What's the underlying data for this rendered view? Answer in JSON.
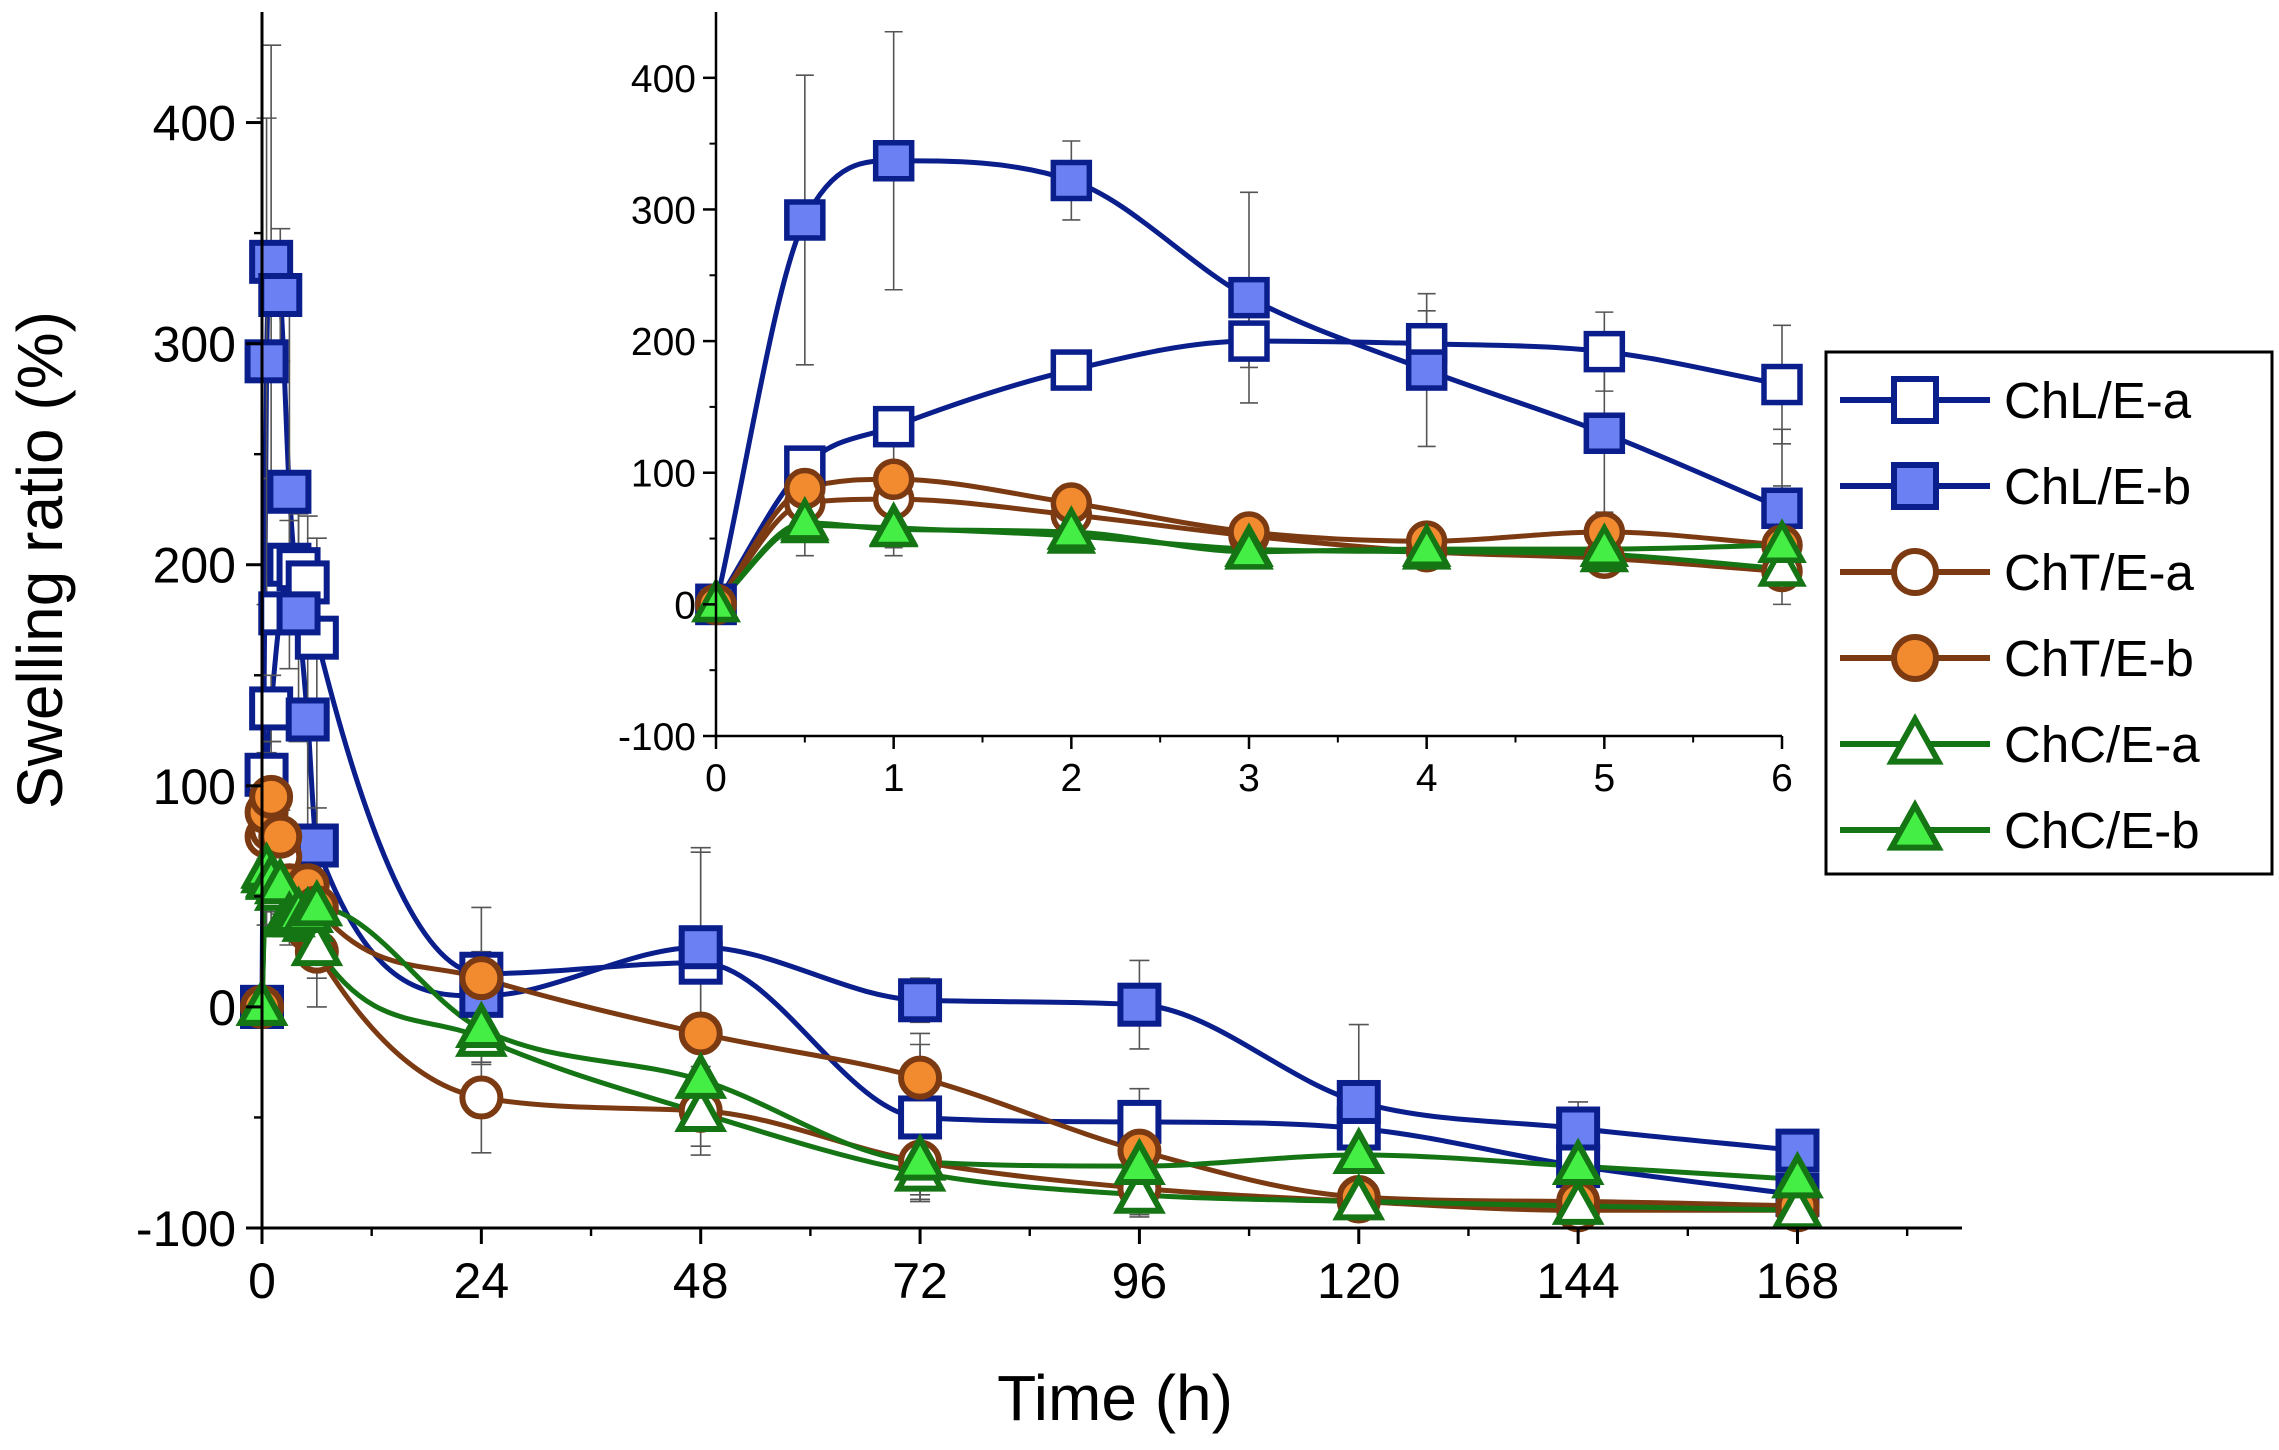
{
  "chart_data": [
    {
      "panel": "main",
      "type": "line",
      "xlabel": "Time (h)",
      "ylabel": "Swelling ratio (%)",
      "xlim": [
        0,
        186
      ],
      "ylim": [
        -100,
        450
      ],
      "xticks": [
        0,
        24,
        48,
        72,
        96,
        120,
        144,
        168
      ],
      "yticks": [
        -100,
        0,
        100,
        200,
        300,
        400
      ],
      "x": [
        0,
        0.5,
        1,
        2,
        3,
        4,
        5,
        6,
        24,
        48,
        72,
        96,
        120,
        144,
        168
      ],
      "series": [
        {
          "name": "ChL/E-a",
          "color": "#0a1e8c",
          "fill": "#ffffff",
          "marker": "square",
          "values": [
            0,
            105,
            135,
            178,
            200,
            198,
            192,
            167,
            15,
            20,
            -50,
            -52,
            -55,
            -72,
            -85
          ],
          "errors": [
            0,
            10,
            15,
            8,
            20,
            25,
            30,
            45,
            30,
            50,
            38,
            15,
            15,
            18,
            8
          ]
        },
        {
          "name": "ChL/E-b",
          "color": "#0a1e8c",
          "fill": "#6b80f2",
          "marker": "square",
          "values": [
            0,
            292,
            337,
            322,
            233,
            178,
            130,
            73,
            5,
            27,
            3,
            1,
            -43,
            -55,
            -65
          ],
          "errors": [
            0,
            110,
            98,
            30,
            80,
            58,
            65,
            60,
            20,
            45,
            10,
            20,
            35,
            12,
            8
          ]
        },
        {
          "name": "ChT/E-a",
          "color": "#7b3a12",
          "fill": "#ffffff",
          "marker": "circle",
          "values": [
            0,
            77,
            80,
            68,
            52,
            40,
            35,
            25,
            -41,
            -47,
            -70,
            -82,
            -88,
            -92,
            -92
          ],
          "errors": [
            0,
            10,
            20,
            8,
            8,
            6,
            5,
            8,
            25,
            20,
            18,
            12,
            8,
            6,
            5
          ]
        },
        {
          "name": "ChT/E-b",
          "color": "#7b3a12",
          "fill": "#f28a30",
          "marker": "circle",
          "values": [
            0,
            88,
            95,
            77,
            55,
            48,
            55,
            45,
            13,
            -12,
            -32,
            -65,
            -86,
            -88,
            -90
          ],
          "errors": [
            0,
            15,
            25,
            12,
            10,
            8,
            15,
            10,
            10,
            8,
            15,
            10,
            8,
            6,
            5
          ]
        },
        {
          "name": "ChC/E-a",
          "color": "#157515",
          "fill": "#ffffff",
          "marker": "triangle",
          "values": [
            0,
            60,
            58,
            52,
            42,
            40,
            38,
            27,
            -14,
            -48,
            -75,
            -85,
            -88,
            -90,
            -92
          ],
          "errors": [
            0,
            12,
            15,
            10,
            8,
            8,
            8,
            10,
            12,
            15,
            12,
            10,
            8,
            6,
            5
          ]
        },
        {
          "name": "ChC/E-b",
          "color": "#157515",
          "fill": "#44ee44",
          "marker": "triangle",
          "values": [
            0,
            62,
            57,
            55,
            40,
            42,
            42,
            45,
            -10,
            -33,
            -70,
            -72,
            -67,
            -72,
            -78
          ],
          "errors": [
            0,
            25,
            20,
            15,
            12,
            10,
            10,
            45,
            15,
            15,
            15,
            10,
            8,
            6,
            5
          ]
        }
      ]
    },
    {
      "panel": "inset",
      "type": "line",
      "xlim": [
        0,
        6
      ],
      "ylim": [
        -100,
        450
      ],
      "xticks": [
        0,
        1,
        2,
        3,
        4,
        5,
        6
      ],
      "yticks": [
        -100,
        0,
        100,
        200,
        300,
        400
      ],
      "x": [
        0,
        0.5,
        1,
        2,
        3,
        4,
        5,
        6
      ],
      "series": [
        {
          "name": "ChL/E-a",
          "values": [
            0,
            105,
            135,
            178,
            200,
            198,
            192,
            167
          ],
          "errors": [
            0,
            10,
            15,
            8,
            20,
            25,
            30,
            45
          ]
        },
        {
          "name": "ChL/E-b",
          "values": [
            0,
            292,
            337,
            322,
            233,
            178,
            130,
            73
          ],
          "errors": [
            0,
            110,
            98,
            30,
            80,
            58,
            65,
            60
          ]
        },
        {
          "name": "ChT/E-a",
          "values": [
            0,
            77,
            80,
            68,
            52,
            40,
            35,
            25
          ],
          "errors": [
            0,
            10,
            20,
            8,
            8,
            6,
            5,
            8
          ]
        },
        {
          "name": "ChT/E-b",
          "values": [
            0,
            88,
            95,
            77,
            55,
            48,
            55,
            45
          ],
          "errors": [
            0,
            15,
            25,
            12,
            10,
            8,
            15,
            10
          ]
        },
        {
          "name": "ChC/E-a",
          "values": [
            0,
            60,
            58,
            52,
            42,
            40,
            38,
            27
          ],
          "errors": [
            0,
            12,
            15,
            10,
            8,
            8,
            8,
            10
          ]
        },
        {
          "name": "ChC/E-b",
          "values": [
            0,
            62,
            57,
            55,
            40,
            42,
            42,
            45
          ],
          "errors": [
            0,
            25,
            20,
            15,
            12,
            10,
            10,
            45
          ]
        }
      ]
    }
  ],
  "legend": {
    "position": "right",
    "items": [
      "ChL/E-a",
      "ChL/E-b",
      "ChT/E-a",
      "ChT/E-b",
      "ChC/E-a",
      "ChC/E-b"
    ]
  }
}
